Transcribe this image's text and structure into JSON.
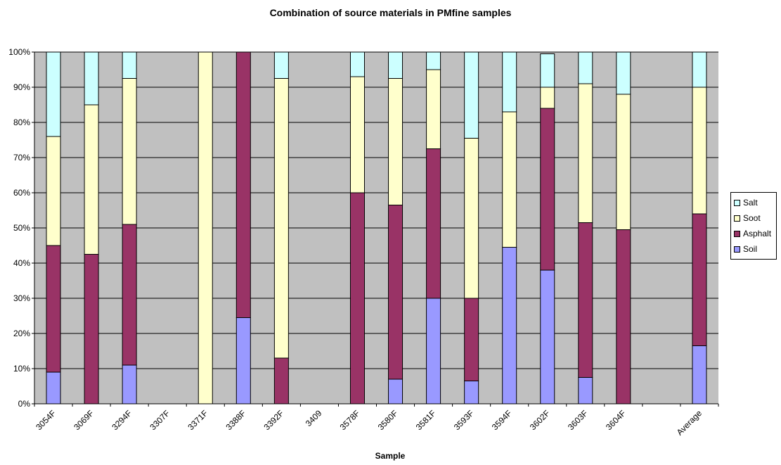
{
  "chart_data": {
    "type": "bar",
    "stacked": "percent",
    "title": "Combination of source materials in PMfine samples",
    "xlabel": "Sample",
    "ylabel": "",
    "ylim": [
      0,
      100
    ],
    "y_tick_labels": [
      "0%",
      "10%",
      "20%",
      "30%",
      "40%",
      "50%",
      "60%",
      "70%",
      "80%",
      "90%",
      "100%"
    ],
    "categories": [
      "3054F",
      "3069F",
      "3294F",
      "3307F",
      "3371F",
      "3388F",
      "3392F",
      "3409",
      "3578F",
      "3580F",
      "3581F",
      "3593F",
      "3594F",
      "3602F",
      "3603F",
      "3604F",
      "",
      "Average"
    ],
    "series": [
      {
        "name": "Soil",
        "color": "#9999ff",
        "values": [
          9,
          0,
          11,
          0,
          0,
          24.5,
          0,
          0,
          0,
          7,
          30,
          6.5,
          44.5,
          38,
          7.5,
          0,
          0,
          16.5
        ]
      },
      {
        "name": "Asphalt",
        "color": "#993366",
        "values": [
          36,
          42.5,
          40,
          0,
          0,
          75.5,
          13,
          0,
          60,
          49.5,
          42.5,
          23.5,
          0,
          46,
          44,
          49.5,
          0,
          37.5
        ]
      },
      {
        "name": "Soot",
        "color": "#ffffcc",
        "values": [
          31,
          42.5,
          41.5,
          0,
          100,
          0,
          79.5,
          0,
          33,
          36,
          22.5,
          45.5,
          38.5,
          6,
          39.5,
          38.5,
          0,
          36
        ]
      },
      {
        "name": "Salt",
        "color": "#ccffff",
        "values": [
          24,
          15,
          7.5,
          0,
          0,
          0,
          7.5,
          0,
          7,
          7.5,
          5,
          24.5,
          17,
          9.5,
          9,
          12,
          0,
          10
        ]
      }
    ],
    "grid": true,
    "plot_background": "#c0c0c0",
    "legend_position": "right",
    "legend_order": [
      "Salt",
      "Soot",
      "Asphalt",
      "Soil"
    ]
  }
}
